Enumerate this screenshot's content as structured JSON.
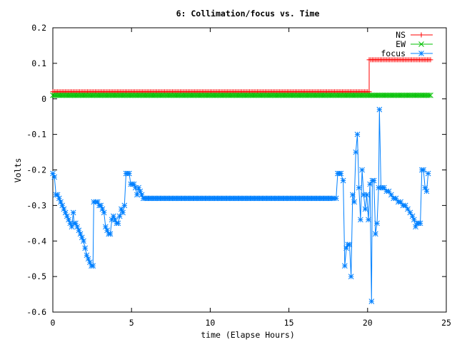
{
  "chart_data": {
    "type": "line",
    "title": "6: Collimation/focus vs. Time",
    "xlabel": "time (Elapse Hours)",
    "ylabel": "Volts",
    "xlim": [
      0,
      25
    ],
    "ylim": [
      -0.6,
      0.2
    ],
    "xticks": [
      0,
      5,
      10,
      15,
      20,
      25
    ],
    "yticks": [
      -0.6,
      -0.5,
      -0.4,
      -0.3,
      -0.2,
      -0.1,
      0,
      0.1,
      0.2
    ],
    "grid": false,
    "legend_position": "top-right",
    "series": [
      {
        "name": "NS",
        "color": "#ff0000",
        "marker": "plus",
        "points": [
          [
            0,
            0.02
          ],
          [
            20.1,
            0.02
          ],
          [
            20.1,
            0.11
          ],
          [
            24,
            0.11
          ]
        ]
      },
      {
        "name": "EW",
        "color": "#00c000",
        "marker": "cross",
        "points": [
          [
            0,
            0.01
          ],
          [
            24,
            0.01
          ]
        ]
      },
      {
        "name": "focus",
        "color": "#0080ff",
        "marker": "star",
        "points": [
          [
            0,
            -0.21
          ],
          [
            0.1,
            -0.22
          ],
          [
            0.2,
            -0.27
          ],
          [
            0.3,
            -0.27
          ],
          [
            0.4,
            -0.28
          ],
          [
            0.5,
            -0.29
          ],
          [
            0.6,
            -0.3
          ],
          [
            0.7,
            -0.31
          ],
          [
            0.8,
            -0.32
          ],
          [
            0.9,
            -0.33
          ],
          [
            1.0,
            -0.34
          ],
          [
            1.1,
            -0.35
          ],
          [
            1.2,
            -0.36
          ],
          [
            1.3,
            -0.32
          ],
          [
            1.35,
            -0.35
          ],
          [
            1.45,
            -0.35
          ],
          [
            1.55,
            -0.36
          ],
          [
            1.65,
            -0.37
          ],
          [
            1.75,
            -0.38
          ],
          [
            1.85,
            -0.39
          ],
          [
            1.95,
            -0.4
          ],
          [
            2.05,
            -0.42
          ],
          [
            2.15,
            -0.44
          ],
          [
            2.25,
            -0.45
          ],
          [
            2.35,
            -0.46
          ],
          [
            2.45,
            -0.47
          ],
          [
            2.55,
            -0.47
          ],
          [
            2.6,
            -0.29
          ],
          [
            2.75,
            -0.29
          ],
          [
            2.85,
            -0.29
          ],
          [
            2.95,
            -0.3
          ],
          [
            3.05,
            -0.3
          ],
          [
            3.15,
            -0.31
          ],
          [
            3.25,
            -0.32
          ],
          [
            3.35,
            -0.36
          ],
          [
            3.45,
            -0.37
          ],
          [
            3.55,
            -0.38
          ],
          [
            3.65,
            -0.38
          ],
          [
            3.75,
            -0.34
          ],
          [
            3.85,
            -0.33
          ],
          [
            3.95,
            -0.34
          ],
          [
            4.05,
            -0.35
          ],
          [
            4.15,
            -0.35
          ],
          [
            4.25,
            -0.33
          ],
          [
            4.35,
            -0.31
          ],
          [
            4.45,
            -0.32
          ],
          [
            4.55,
            -0.3
          ],
          [
            4.65,
            -0.21
          ],
          [
            4.75,
            -0.21
          ],
          [
            4.85,
            -0.21
          ],
          [
            4.95,
            -0.24
          ],
          [
            5.05,
            -0.24
          ],
          [
            5.15,
            -0.24
          ],
          [
            5.25,
            -0.25
          ],
          [
            5.35,
            -0.27
          ],
          [
            5.45,
            -0.25
          ],
          [
            5.55,
            -0.26
          ],
          [
            5.65,
            -0.27
          ],
          [
            5.75,
            -0.28
          ],
          [
            18.0,
            -0.28
          ],
          [
            18.1,
            -0.21
          ],
          [
            18.2,
            -0.21
          ],
          [
            18.3,
            -0.21
          ],
          [
            18.45,
            -0.23
          ],
          [
            18.55,
            -0.47
          ],
          [
            18.65,
            -0.42
          ],
          [
            18.75,
            -0.41
          ],
          [
            18.85,
            -0.41
          ],
          [
            18.95,
            -0.5
          ],
          [
            19.05,
            -0.27
          ],
          [
            19.15,
            -0.29
          ],
          [
            19.25,
            -0.15
          ],
          [
            19.35,
            -0.1
          ],
          [
            19.45,
            -0.25
          ],
          [
            19.55,
            -0.34
          ],
          [
            19.65,
            -0.2
          ],
          [
            19.75,
            -0.27
          ],
          [
            19.85,
            -0.31
          ],
          [
            19.95,
            -0.27
          ],
          [
            20.05,
            -0.34
          ],
          [
            20.15,
            -0.24
          ],
          [
            20.25,
            -0.57
          ],
          [
            20.3,
            -0.23
          ],
          [
            20.4,
            -0.23
          ],
          [
            20.5,
            -0.38
          ],
          [
            20.6,
            -0.35
          ],
          [
            20.7,
            -0.25
          ],
          [
            20.75,
            -0.03
          ],
          [
            20.85,
            -0.25
          ],
          [
            20.95,
            -0.25
          ],
          [
            21.05,
            -0.25
          ],
          [
            21.2,
            -0.26
          ],
          [
            21.35,
            -0.26
          ],
          [
            21.5,
            -0.27
          ],
          [
            21.65,
            -0.28
          ],
          [
            21.8,
            -0.28
          ],
          [
            21.95,
            -0.29
          ],
          [
            22.1,
            -0.29
          ],
          [
            22.25,
            -0.3
          ],
          [
            22.4,
            -0.3
          ],
          [
            22.55,
            -0.31
          ],
          [
            22.7,
            -0.32
          ],
          [
            22.85,
            -0.33
          ],
          [
            22.95,
            -0.34
          ],
          [
            23.05,
            -0.36
          ],
          [
            23.15,
            -0.35
          ],
          [
            23.25,
            -0.35
          ],
          [
            23.35,
            -0.35
          ],
          [
            23.45,
            -0.2
          ],
          [
            23.55,
            -0.2
          ],
          [
            23.65,
            -0.25
          ],
          [
            23.75,
            -0.26
          ],
          [
            23.85,
            -0.21
          ]
        ]
      }
    ]
  }
}
